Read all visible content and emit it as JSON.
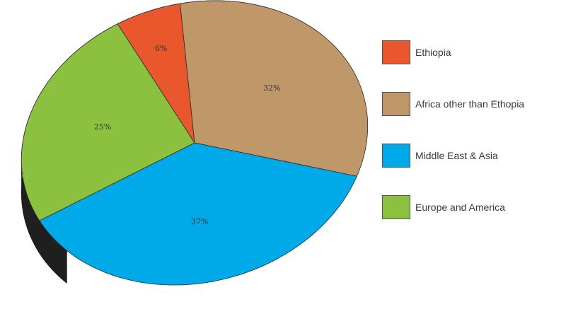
{
  "chart_data": {
    "type": "pie",
    "style": "3d",
    "categories": [
      "Ethiopia",
      "Africa other than Ethopia",
      "Middle East & Asia",
      "Europe and America"
    ],
    "values": [
      6,
      32,
      37,
      25
    ],
    "value_labels": [
      "6%",
      "32%",
      "37%",
      "25%"
    ],
    "colors": [
      "#E8582C",
      "#BF9769",
      "#00A9E8",
      "#8CC13F"
    ],
    "side_color": "#1f1f1f",
    "legend_position": "right"
  },
  "legend": {
    "items": [
      {
        "label": "Ethiopia",
        "color": "#E8582C"
      },
      {
        "label": "Africa other than Ethopia",
        "color": "#BF9769"
      },
      {
        "label": "Middle East & Asia",
        "color": "#00A9E8"
      },
      {
        "label": "Europe and America",
        "color": "#8CC13F"
      }
    ]
  }
}
